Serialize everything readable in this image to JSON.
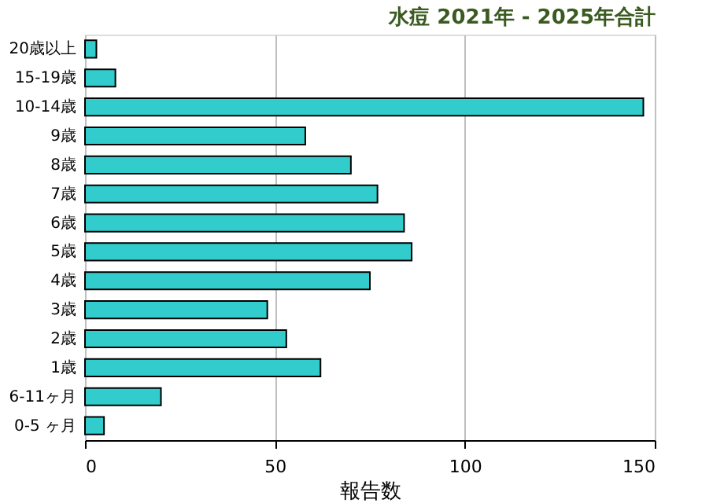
{
  "chart_data": {
    "type": "bar",
    "orientation": "horizontal",
    "title": "水痘 2021年 - 2025年合計",
    "xlabel": "報告数",
    "categories": [
      "20歳以上",
      "15-19歳",
      "10-14歳",
      "9歳",
      "8歳",
      "7歳",
      "6歳",
      "5歳",
      "4歳",
      "3歳",
      "2歳",
      "1歳",
      "6-11ヶ月",
      "0-5 ヶ月"
    ],
    "values": [
      3,
      8,
      147,
      58,
      70,
      77,
      84,
      86,
      75,
      48,
      53,
      62,
      20,
      5
    ],
    "color": "#33cccc",
    "xlim": [
      0,
      150
    ],
    "xticks": [
      0,
      50,
      100,
      150
    ],
    "grid": "x"
  }
}
